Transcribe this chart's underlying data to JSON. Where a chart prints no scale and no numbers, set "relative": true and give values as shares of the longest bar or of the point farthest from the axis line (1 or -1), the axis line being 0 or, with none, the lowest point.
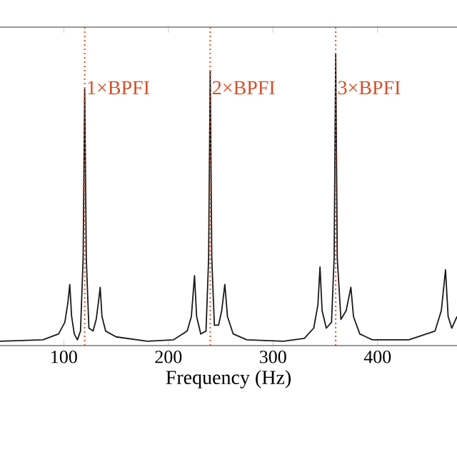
{
  "chart_data": {
    "type": "line",
    "xlabel": "Frequency (Hz)",
    "relative": true,
    "xlim": [
      39,
      476
    ],
    "xticks": [
      100,
      200,
      300,
      400
    ],
    "grid": false,
    "marker": "none",
    "line_style": "solid",
    "x": [
      39,
      80,
      95,
      101,
      104,
      105.7,
      107.5,
      110,
      113,
      116,
      118.5,
      120,
      121.5,
      124,
      128,
      131,
      133.5,
      134.8,
      136.5,
      140,
      150,
      180,
      205,
      218,
      222,
      225,
      227,
      231,
      236,
      238.5,
      240,
      241.5,
      244,
      248,
      251,
      254,
      256.5,
      262,
      275,
      310,
      330,
      339,
      343,
      345,
      347,
      351,
      356,
      358.5,
      360,
      361.5,
      365,
      370,
      374.5,
      377,
      383,
      395,
      430,
      455,
      461,
      465,
      467.5,
      471,
      476
    ],
    "series": [
      {
        "color": "#1a1a1a",
        "values": [
          0.015,
          0.02,
          0.04,
          0.08,
          0.15,
          0.21,
          0.1,
          0.04,
          0.02,
          0.05,
          0.3,
          0.88,
          0.3,
          0.06,
          0.05,
          0.09,
          0.16,
          0.2,
          0.1,
          0.05,
          0.03,
          0.015,
          0.02,
          0.05,
          0.1,
          0.24,
          0.1,
          0.04,
          0.05,
          0.3,
          0.94,
          0.3,
          0.07,
          0.07,
          0.12,
          0.21,
          0.1,
          0.04,
          0.02,
          0.015,
          0.025,
          0.06,
          0.14,
          0.27,
          0.12,
          0.06,
          0.08,
          0.3,
          1.0,
          0.3,
          0.09,
          0.12,
          0.2,
          0.1,
          0.04,
          0.02,
          0.02,
          0.05,
          0.12,
          0.26,
          0.1,
          0.06,
          0.1
        ]
      }
    ],
    "ref_lines": [
      {
        "axis": "x",
        "value": 120,
        "label": "1×BPFI",
        "color": "#d4502a",
        "line_style": "dotted"
      },
      {
        "axis": "x",
        "value": 240,
        "label": "2×BPFI",
        "color": "#d4502a",
        "line_style": "dotted"
      },
      {
        "axis": "x",
        "value": 360,
        "label": "3×BPFI",
        "color": "#d4502a",
        "line_style": "dotted"
      }
    ]
  }
}
